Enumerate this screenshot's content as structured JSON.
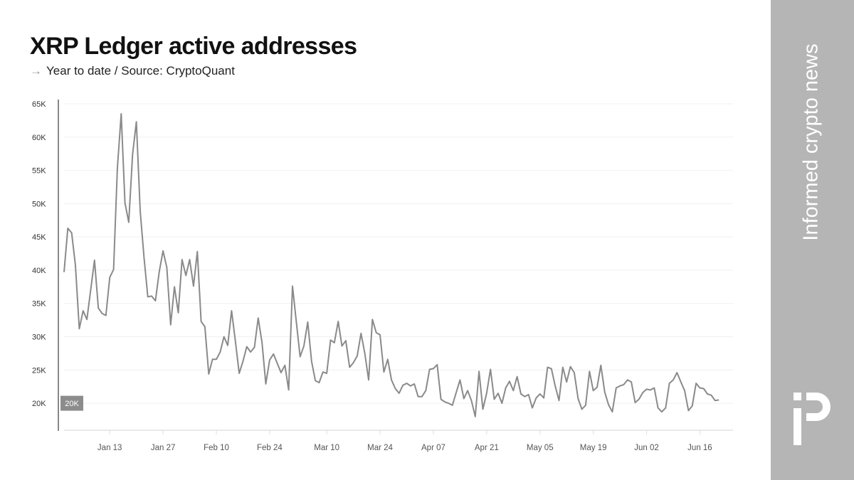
{
  "header": {
    "title": "XRP Ledger active addresses",
    "subtitle_arrow": "→",
    "subtitle": "Year to date / Source: CryptoQuant"
  },
  "sidebar": {
    "tagline": "Informed crypto news",
    "logo_text": "iP",
    "background_color": "#b5b5b5"
  },
  "chart_data": {
    "type": "line",
    "title": "XRP Ledger active addresses",
    "subtitle": "Year to date / Source: CryptoQuant",
    "xlabel": "",
    "ylabel": "",
    "ylim": [
      16000,
      65000
    ],
    "grid": true,
    "line_color": "#8a8a8a",
    "y_ticks": [
      {
        "value": 65000,
        "label": "65K"
      },
      {
        "value": 60000,
        "label": "60K"
      },
      {
        "value": 55000,
        "label": "55K"
      },
      {
        "value": 50000,
        "label": "50K"
      },
      {
        "value": 45000,
        "label": "45K"
      },
      {
        "value": 40000,
        "label": "40K"
      },
      {
        "value": 35000,
        "label": "35K"
      },
      {
        "value": 30000,
        "label": "30K"
      },
      {
        "value": 25000,
        "label": "25K"
      },
      {
        "value": 20000,
        "label": "20K"
      }
    ],
    "highlighted_y_label": {
      "value": 20000,
      "label": "20K"
    },
    "x_ticks": [
      {
        "date": "2024-01-13",
        "label": "Jan 13"
      },
      {
        "date": "2024-01-27",
        "label": "Jan 27"
      },
      {
        "date": "2024-02-10",
        "label": "Feb 10"
      },
      {
        "date": "2024-02-24",
        "label": "Feb 24"
      },
      {
        "date": "2024-03-10",
        "label": "Mar 10"
      },
      {
        "date": "2024-03-24",
        "label": "Mar 24"
      },
      {
        "date": "2024-04-07",
        "label": "Apr 07"
      },
      {
        "date": "2024-04-21",
        "label": "Apr 21"
      },
      {
        "date": "2024-05-05",
        "label": "May 05"
      },
      {
        "date": "2024-05-19",
        "label": "May 19"
      },
      {
        "date": "2024-06-02",
        "label": "Jun 02"
      },
      {
        "date": "2024-06-16",
        "label": "Jun 16"
      }
    ],
    "xlim": [
      "2024-01-01",
      "2024-06-21"
    ],
    "x": [
      "2024-01-01",
      "2024-01-02",
      "2024-01-03",
      "2024-01-04",
      "2024-01-05",
      "2024-01-06",
      "2024-01-07",
      "2024-01-08",
      "2024-01-09",
      "2024-01-10",
      "2024-01-11",
      "2024-01-12",
      "2024-01-13",
      "2024-01-14",
      "2024-01-15",
      "2024-01-16",
      "2024-01-17",
      "2024-01-18",
      "2024-01-19",
      "2024-01-20",
      "2024-01-21",
      "2024-01-22",
      "2024-01-23",
      "2024-01-24",
      "2024-01-25",
      "2024-01-26",
      "2024-01-27",
      "2024-01-28",
      "2024-01-29",
      "2024-01-30",
      "2024-01-31",
      "2024-02-01",
      "2024-02-02",
      "2024-02-03",
      "2024-02-04",
      "2024-02-05",
      "2024-02-06",
      "2024-02-07",
      "2024-02-08",
      "2024-02-09",
      "2024-02-10",
      "2024-02-11",
      "2024-02-12",
      "2024-02-13",
      "2024-02-14",
      "2024-02-15",
      "2024-02-16",
      "2024-02-17",
      "2024-02-18",
      "2024-02-19",
      "2024-02-20",
      "2024-02-21",
      "2024-02-22",
      "2024-02-23",
      "2024-02-24",
      "2024-02-25",
      "2024-02-26",
      "2024-02-27",
      "2024-02-28",
      "2024-02-29",
      "2024-03-01",
      "2024-03-02",
      "2024-03-03",
      "2024-03-04",
      "2024-03-05",
      "2024-03-06",
      "2024-03-07",
      "2024-03-08",
      "2024-03-09",
      "2024-03-10",
      "2024-03-11",
      "2024-03-12",
      "2024-03-13",
      "2024-03-14",
      "2024-03-15",
      "2024-03-16",
      "2024-03-17",
      "2024-03-18",
      "2024-03-19",
      "2024-03-20",
      "2024-03-21",
      "2024-03-22",
      "2024-03-23",
      "2024-03-24",
      "2024-03-25",
      "2024-03-26",
      "2024-03-27",
      "2024-03-28",
      "2024-03-29",
      "2024-03-30",
      "2024-03-31",
      "2024-04-01",
      "2024-04-02",
      "2024-04-03",
      "2024-04-04",
      "2024-04-05",
      "2024-04-06",
      "2024-04-07",
      "2024-04-08",
      "2024-04-09",
      "2024-04-10",
      "2024-04-11",
      "2024-04-12",
      "2024-04-13",
      "2024-04-14",
      "2024-04-15",
      "2024-04-16",
      "2024-04-17",
      "2024-04-18",
      "2024-04-19",
      "2024-04-20",
      "2024-04-21",
      "2024-04-22",
      "2024-04-23",
      "2024-04-24",
      "2024-04-25",
      "2024-04-26",
      "2024-04-27",
      "2024-04-28",
      "2024-04-29",
      "2024-04-30",
      "2024-05-01",
      "2024-05-02",
      "2024-05-03",
      "2024-05-04",
      "2024-05-05",
      "2024-05-06",
      "2024-05-07",
      "2024-05-08",
      "2024-05-09",
      "2024-05-10",
      "2024-05-11",
      "2024-05-12",
      "2024-05-13",
      "2024-05-14",
      "2024-05-15",
      "2024-05-16",
      "2024-05-17",
      "2024-05-18",
      "2024-05-19",
      "2024-05-20",
      "2024-05-21",
      "2024-05-22",
      "2024-05-23",
      "2024-05-24",
      "2024-05-25",
      "2024-05-26",
      "2024-05-27",
      "2024-05-28",
      "2024-05-29",
      "2024-05-30",
      "2024-05-31",
      "2024-06-01",
      "2024-06-02",
      "2024-06-03",
      "2024-06-04",
      "2024-06-05",
      "2024-06-06",
      "2024-06-07",
      "2024-06-08",
      "2024-06-09",
      "2024-06-10",
      "2024-06-11",
      "2024-06-12",
      "2024-06-13",
      "2024-06-14",
      "2024-06-15",
      "2024-06-16",
      "2024-06-17",
      "2024-06-18",
      "2024-06-19",
      "2024-06-20",
      "2024-06-21"
    ],
    "series": [
      {
        "values": [
          39700,
          46300,
          45600,
          40700,
          31200,
          33900,
          32600,
          37000,
          41500,
          34300,
          33500,
          33200,
          38900,
          40100,
          55300,
          63500,
          50100,
          47200,
          57400,
          62300,
          48900,
          42000,
          36000,
          36100,
          35400,
          39800,
          42900,
          40400,
          31800,
          37500,
          33600,
          41600,
          39200,
          41600,
          37600,
          42800,
          32300,
          31500,
          24400,
          26600,
          26600,
          27700,
          30000,
          28700,
          33900,
          29300,
          24500,
          26300,
          28500,
          27700,
          28400,
          32800,
          29100,
          22900,
          26500,
          27400,
          26000,
          24600,
          25700,
          22000,
          37600,
          32300,
          27000,
          28600,
          32200,
          26300,
          23400,
          23100,
          24700,
          24500,
          29500,
          29100,
          32300,
          28600,
          29400,
          25400,
          26100,
          27100,
          30500,
          27500,
          23500,
          32600,
          30600,
          30300,
          24700,
          26600,
          23500,
          22200,
          21500,
          22700,
          23000,
          22600,
          22900,
          21000,
          21000,
          21900,
          25100,
          25200,
          25800,
          20600,
          20200,
          20000,
          19700,
          21600,
          23500,
          20700,
          21900,
          20400,
          18000,
          24800,
          19100,
          21500,
          25100,
          20600,
          21500,
          20000,
          22300,
          23300,
          21900,
          24000,
          21400,
          21000,
          21300,
          19300,
          20800,
          21400,
          20800,
          25400,
          25200,
          22600,
          20400,
          25400,
          23200,
          25500,
          24600,
          20700,
          19100,
          19700,
          24800,
          21900,
          22400,
          25700,
          21700,
          19800,
          18700,
          22300,
          22600,
          22800,
          23500,
          23200,
          20100,
          20600,
          21600,
          22100,
          22000,
          22300,
          19300,
          18700,
          19300,
          23000,
          23500,
          24600,
          23200,
          21900,
          18900,
          19600,
          23000,
          22300,
          22200,
          21400,
          21200,
          20400,
          20500
        ]
      }
    ]
  }
}
